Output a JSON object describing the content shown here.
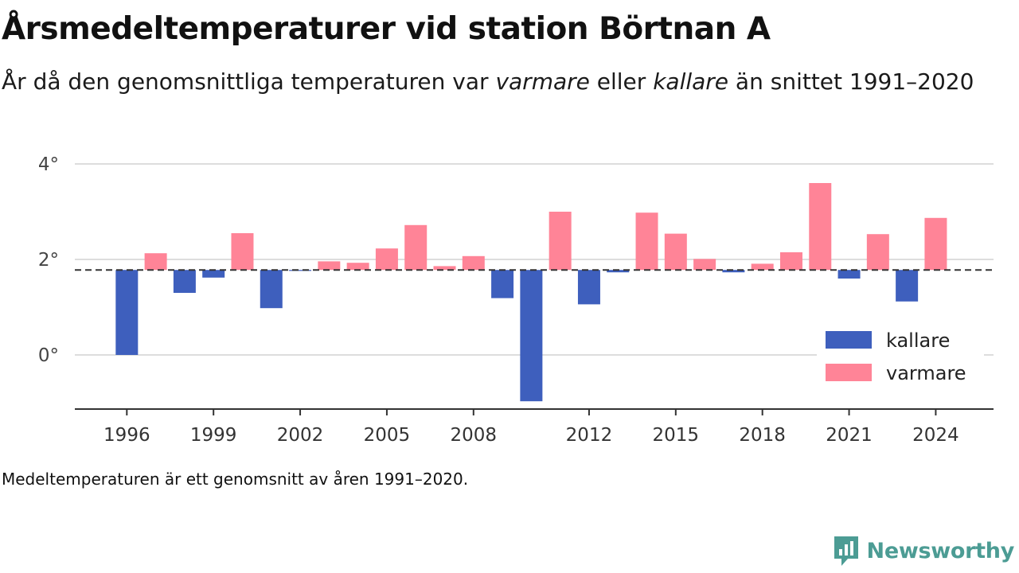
{
  "header": {
    "title": "Årsmedeltemperaturer vid station Börtnan A",
    "subtitle_pre": "År då den genomsnittliga temperaturen var ",
    "subtitle_warm": "varmare",
    "subtitle_mid": " eller ",
    "subtitle_cold": "kallare",
    "subtitle_post": " än snittet 1991–2020"
  },
  "footer": {
    "note": "Medeltemperaturen är ett genomsnitt av åren 1991–2020.",
    "logo_text": "Newsworthy"
  },
  "chart_data": {
    "type": "bar",
    "title": "",
    "xlabel": "",
    "ylabel": "",
    "baseline": 1.78,
    "baseline_style": "dashed",
    "ylim": [
      -1.1,
      4.3
    ],
    "yticks": [
      0,
      2,
      4
    ],
    "ytick_labels": [
      "0°",
      "2°",
      "4°"
    ],
    "xlim": [
      1994.2,
      2026.0
    ],
    "xticks": [
      1996,
      1999,
      2002,
      2005,
      2008,
      2012,
      2015,
      2018,
      2021,
      2024
    ],
    "xtick_labels": [
      "1996",
      "1999",
      "2002",
      "2005",
      "2008",
      "2012",
      "2015",
      "2018",
      "2021",
      "2024"
    ],
    "legend": {
      "position": "bottom-right",
      "items": [
        {
          "key": "cold",
          "label": "kallare"
        },
        {
          "key": "warm",
          "label": "varmare"
        }
      ]
    },
    "colors": {
      "cold": "#3e5fbd",
      "warm": "#ff8497",
      "grid": "#dddddd",
      "axis": "#333333",
      "baseline": "#333333"
    },
    "years": [
      1996,
      1997,
      1998,
      1999,
      2000,
      2001,
      2002,
      2003,
      2004,
      2005,
      2006,
      2007,
      2008,
      2009,
      2010,
      2011,
      2012,
      2013,
      2014,
      2015,
      2016,
      2017,
      2018,
      2019,
      2020,
      2021,
      2022,
      2023,
      2024
    ],
    "values": [
      0.0,
      2.13,
      1.3,
      1.62,
      2.55,
      0.98,
      1.76,
      1.96,
      1.93,
      2.23,
      2.72,
      1.86,
      2.07,
      1.19,
      -0.97,
      3.0,
      1.06,
      1.73,
      2.98,
      2.54,
      2.01,
      1.73,
      1.91,
      2.15,
      3.6,
      1.6,
      2.53,
      1.12,
      2.87
    ]
  }
}
